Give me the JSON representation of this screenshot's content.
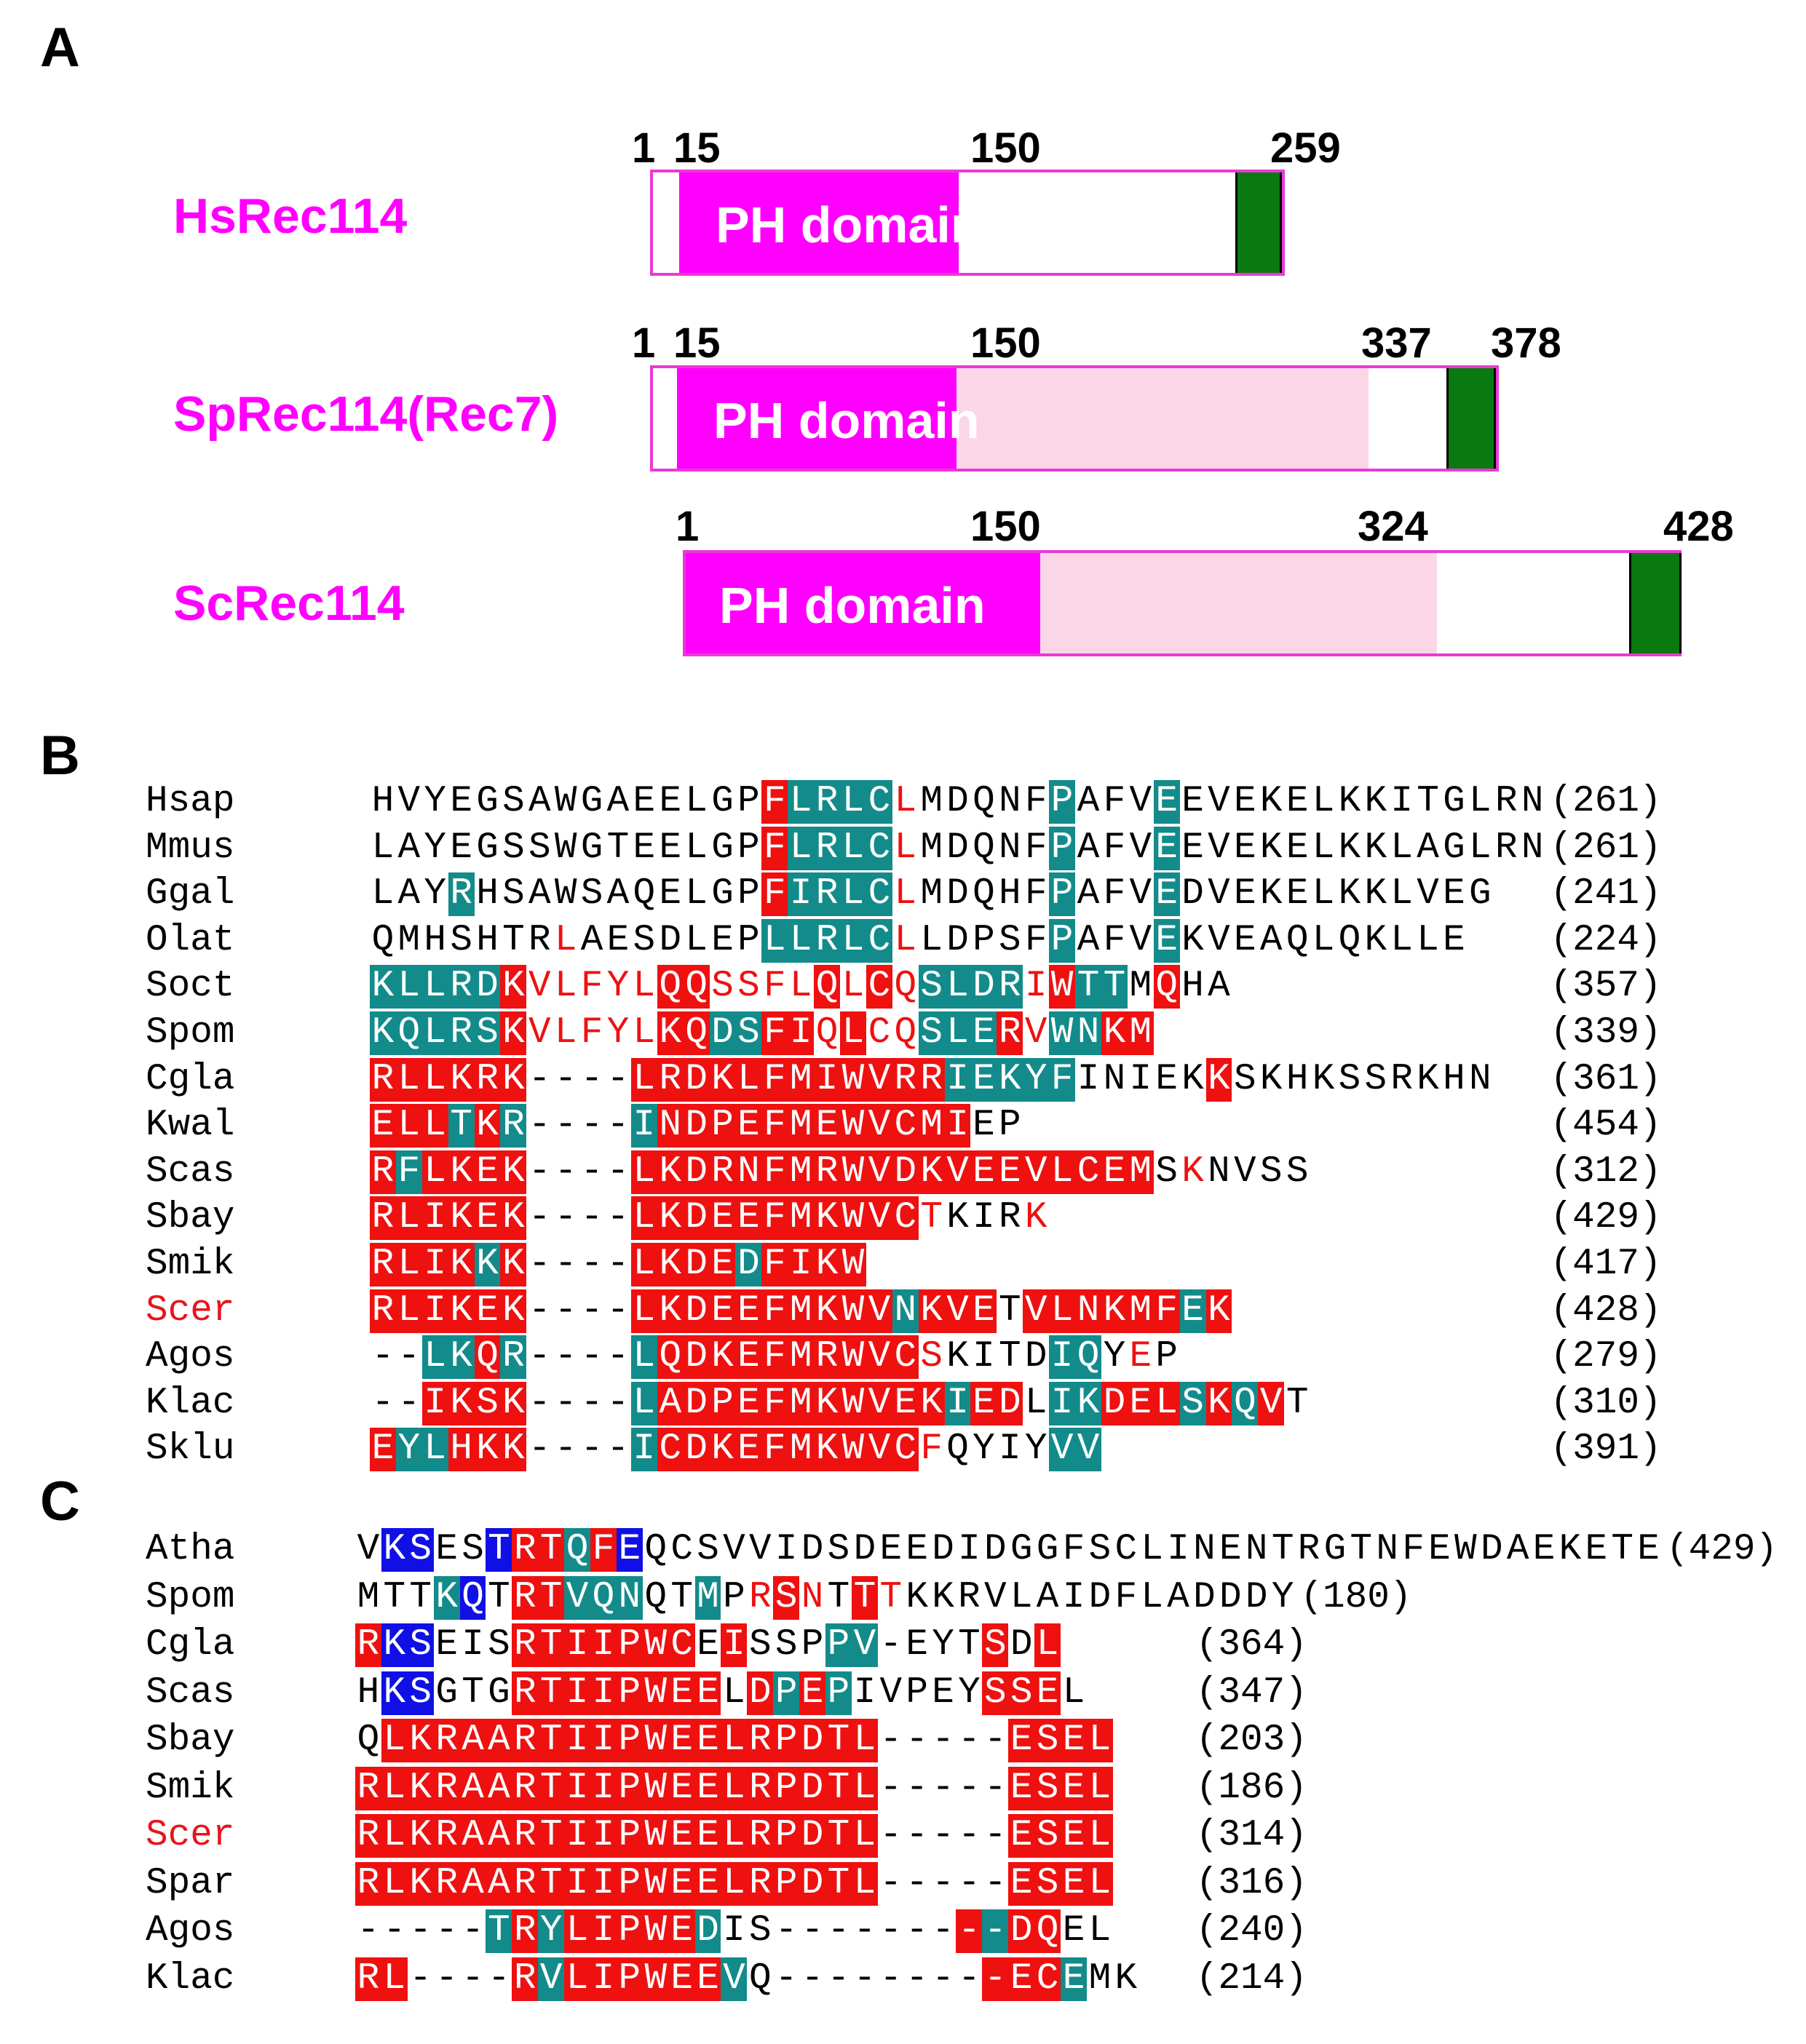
{
  "panels": {
    "a": "A",
    "b": "B",
    "c": "C"
  },
  "colors": {
    "ph_domain": "#ff00ff",
    "extension": "#fbd6e6",
    "c_term_box": "#0a7a10",
    "identical": "#ef1010",
    "similar": "#138b8b",
    "motif": "#1010e6"
  },
  "panel_a": {
    "proteins": [
      {
        "name": "HsRec114",
        "domain_label": "PH domain",
        "positions": [
          "1",
          "15",
          "150",
          "259"
        ]
      },
      {
        "name": "SpRec114(Rec7)",
        "domain_label": "PH domain",
        "positions": [
          "1",
          "15",
          "150",
          "337",
          "378"
        ]
      },
      {
        "name": "ScRec114",
        "domain_label": "PH domain",
        "positions": [
          "1",
          "150",
          "324",
          "428"
        ]
      }
    ]
  },
  "panel_b": {
    "rows": [
      {
        "species": "Hsap",
        "seq": "HVYEGSAWGAEELGPFLRLCLMDQNFPAFVEEVEKELKKITGLRN",
        "count": "(261)",
        "marks": ".........................................................................................................................................."
      },
      {
        "species": "Mmus",
        "seq": "LAYEGSSWGTEELGPFLRLCLMDQNFPAFVEEVEKELKKLAGLRN",
        "count": "(261)"
      },
      {
        "species": "Ggal",
        "seq": "LAYRHSAWSAQELGPFIRLCLMDQHFPAFVEDVEKELKKLVEG",
        "count": "(241)"
      },
      {
        "species": "Olat",
        "seq": "QMHSHTRLAESDLEPLLRLCLLDPSFPAFVEKVEAQLQKLLE",
        "count": "(224)"
      },
      {
        "species": "Soct",
        "seq": "KLLRDKVLFYLQQSSFLQLCQSLDRIWTTMQHA",
        "count": "(357)"
      },
      {
        "species": "Spom",
        "seq": "KQLRSKVLFYLKQDSFIQLCQSLERVWNKM",
        "count": "(339)"
      },
      {
        "species": "Cgla",
        "seq": "RLLKRK----LRDKLFMIWVRRIEKYFINIEKKSKHKSSRKHN",
        "count": "(361)"
      },
      {
        "species": "Kwal",
        "seq": "ELLTKR----INDPEFMEWVCMIEP",
        "count": "(454)"
      },
      {
        "species": "Scas",
        "seq": "RFLKEK----LKDRNFMRWVDKVEEVLCEMSKNVSS",
        "count": "(312)"
      },
      {
        "species": "Sbay",
        "seq": "RLIKEK----LKDEEFMKWVCTKIRK",
        "count": "(429)"
      },
      {
        "species": "Smik",
        "seq": "RLIKKK----LKDEDFIKW",
        "count": "(417)"
      },
      {
        "species": "Scer",
        "seq": "RLIKEK----LKDEEFMKWVNKVETVLNKMFEK",
        "count": "(428)",
        "highlight": true
      },
      {
        "species": "Agos",
        "seq": "--LKQR----LQDKEFMRWVCSKITDIQYEP",
        "count": "(279)"
      },
      {
        "species": "Klac",
        "seq": "--IKSK----LADPEFMKWVEKIEDLIKDELSKQVT",
        "count": "(310)"
      },
      {
        "species": "Sklu",
        "seq": "EYLHKK----ICDKEFMKWVCFQYIYVV",
        "count": "(391)"
      }
    ]
  },
  "panel_c": {
    "rows": [
      {
        "species": "Atha",
        "seq": "VKSESTRTQFEQCSVVIDSDEEDIDGGFSCLINENTRGTNFEWDAEKETE",
        "count": "(429)"
      },
      {
        "species": "Spom",
        "seq": "MTTKQTRTVQNQTMPRSNTTTKKRVLAIDFLADDDY",
        "count": "(180)"
      },
      {
        "species": "Cgla",
        "seq": "RKSEISRTIIPWCEISSPPV-EYTSDL",
        "count": "(364)"
      },
      {
        "species": "Scas",
        "seq": "HKSGTGRTIIPWEELDPEPIVPEYSSEL",
        "count": "(347)"
      },
      {
        "species": "Sbay",
        "seq": "QLKRAARTIIPWEELRPDTL-----ESEL",
        "count": "(203)"
      },
      {
        "species": "Smik",
        "seq": "RLKRAARTIIPWEELRPDTL-----ESEL",
        "count": "(186)"
      },
      {
        "species": "Scer",
        "seq": "RLKRAARTIIPWEELRPDTL-----ESEL",
        "count": "(314)",
        "highlight": true
      },
      {
        "species": "Spar",
        "seq": "RLKRAARTIIPWEELRPDTL-----ESEL",
        "count": "(316)"
      },
      {
        "species": "Agos",
        "seq": "-----TRYLIPWEDIS---------DQEL",
        "count": "(240)"
      },
      {
        "species": "Klac",
        "seq": "RL----RVLIPWEEVQ---------ECEMK",
        "count": "(214)"
      }
    ]
  }
}
